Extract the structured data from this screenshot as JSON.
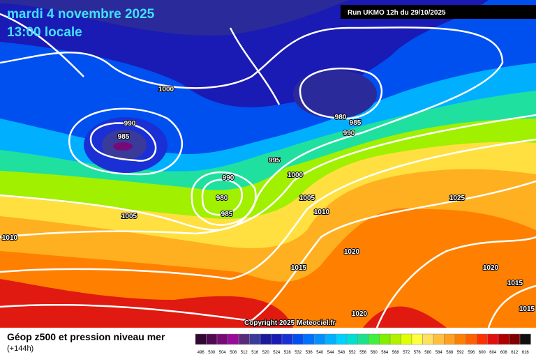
{
  "header": {
    "date": "mardi 4 novembre 2025",
    "time": "13:00 locale",
    "run": "Run UKMO 12h du 29/10/2025"
  },
  "map": {
    "isobar_labels": [
      "1000",
      "990",
      "985",
      "980",
      "985",
      "990",
      "995",
      "1000",
      "990",
      "980",
      "985",
      "1005",
      "1010",
      "1005",
      "1010",
      "1025",
      "1020",
      "1015",
      "1020",
      "1015",
      "1015",
      "1020"
    ],
    "copyright": "Copyright 2025 Meteociel.fr"
  },
  "footer": {
    "title": "Géop z500 et pression niveau mer",
    "subtitle": "(+144h)"
  },
  "legend": {
    "labels": [
      "496",
      "500",
      "504",
      "508",
      "512",
      "516",
      "520",
      "524",
      "528",
      "532",
      "536",
      "540",
      "544",
      "548",
      "552",
      "556",
      "560",
      "564",
      "568",
      "572",
      "576",
      "580",
      "584",
      "588",
      "592",
      "596",
      "600",
      "604",
      "608",
      "612",
      "616"
    ],
    "colors": [
      "#300830",
      "#500a50",
      "#780a78",
      "#9a0a9a",
      "#5a2a7a",
      "#3a3a9a",
      "#1a1a9a",
      "#1a1ab4",
      "#1a30d4",
      "#0050f0",
      "#0070ff",
      "#0090ff",
      "#00b0ff",
      "#00d0ff",
      "#00e0d0",
      "#20e090",
      "#40f040",
      "#80f000",
      "#b0f000",
      "#e0ff00",
      "#ffff40",
      "#ffe060",
      "#ffc040",
      "#ffa020",
      "#ff8000",
      "#ff6000",
      "#ff3000",
      "#e01010",
      "#b00000",
      "#800000",
      "#101010"
    ]
  }
}
